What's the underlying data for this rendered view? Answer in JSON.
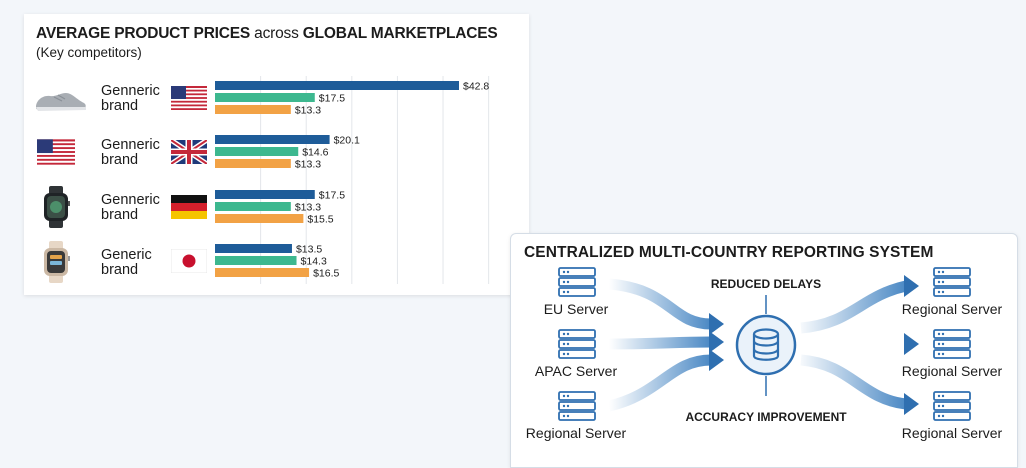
{
  "chart_data": {
    "type": "bar",
    "orientation": "horizontal",
    "title_parts": [
      {
        "text": "AVERAGE PRODUCT PRICES",
        "bold": true
      },
      {
        "text": " across ",
        "bold": false
      },
      {
        "text": "GLOBAL MARKETPLACES",
        "bold": true
      }
    ],
    "subtitle": "(Key competitors)",
    "grid": true,
    "xlim": [
      0,
      48
    ],
    "series_colors": [
      "#1e5c99",
      "#3db88f",
      "#f2a245"
    ],
    "rows": [
      {
        "label_line1": "Genneric",
        "label_line2": "brand",
        "icon": "sneaker-icon",
        "flag": "usa",
        "values": [
          42.8,
          17.5,
          13.3
        ],
        "labels": [
          "$42.8",
          "$17.5",
          "$13.3"
        ]
      },
      {
        "label_line1": "Genneric",
        "label_line2": "brand",
        "icon": "usa-flag-icon",
        "flag": "uk",
        "values": [
          20.1,
          14.6,
          13.3
        ],
        "labels": [
          "$20.1",
          "$14.6",
          "$13.3"
        ]
      },
      {
        "label_line1": "Genneric",
        "label_line2": "brand",
        "icon": "smartwatch-icon",
        "flag": "germany",
        "values": [
          17.5,
          13.3,
          15.5
        ],
        "labels": [
          "$17.5",
          "$13.3",
          "$15.5"
        ]
      },
      {
        "label_line1": "Generic",
        "label_line2": "brand",
        "icon": "smartwatch-white-icon",
        "flag": "japan",
        "values": [
          13.5,
          14.3,
          16.5
        ],
        "labels": [
          "$13.5",
          "$14.3",
          "$16.5"
        ]
      }
    ]
  },
  "system": {
    "title": "CENTRALIZED MULTI-COUNTRY REPORTING SYSTEM",
    "top_label": "REDUCED DELAYS",
    "bottom_label": "ACCURACY IMPROVEMENT",
    "sources": [
      "EU Server",
      "APAC Server",
      "Regional Server"
    ],
    "targets": [
      "Regional Server",
      "Regional Server",
      "Regional Server"
    ],
    "hub_icon": "database-icon",
    "server_icon": "server-rack-icon",
    "colors": {
      "icon": "#2f6fb0",
      "arrow": "#4a88c4",
      "hub_ring": "#2f6fb0"
    }
  }
}
